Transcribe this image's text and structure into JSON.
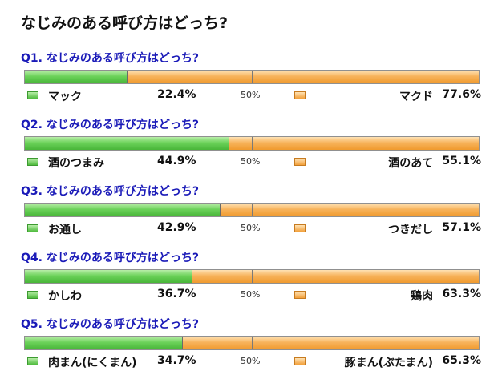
{
  "title": "なじみのある呼び方はどっち?",
  "midpoint_label": "50%",
  "colors": {
    "left": "#5cc84a",
    "right": "#f5a640",
    "question": "#1a1ab8"
  },
  "chart_data": {
    "type": "bar",
    "orientation": "horizontal-stacked-100",
    "questions": [
      {
        "title": "Q1. なじみのある呼び方はどっち?",
        "left_label": "マック",
        "left_value": 22.4,
        "left_text": "22.4%",
        "right_label": "マクド",
        "right_value": 77.6,
        "right_text": "77.6%"
      },
      {
        "title": "Q2. なじみのある呼び方はどっち?",
        "left_label": "酒のつまみ",
        "left_value": 44.9,
        "left_text": "44.9%",
        "right_label": "酒のあて",
        "right_value": 55.1,
        "right_text": "55.1%"
      },
      {
        "title": "Q3. なじみのある呼び方はどっち?",
        "left_label": "お通し",
        "left_value": 42.9,
        "left_text": "42.9%",
        "right_label": "つきだし",
        "right_value": 57.1,
        "right_text": "57.1%"
      },
      {
        "title": "Q4. なじみのある呼び方はどっち?",
        "left_label": "かしわ",
        "left_value": 36.7,
        "left_text": "36.7%",
        "right_label": "鶏肉",
        "right_value": 63.3,
        "right_text": "63.3%"
      },
      {
        "title": "Q5. なじみのある呼び方はどっち?",
        "left_label": "肉まん(にくまん)",
        "left_value": 34.7,
        "left_text": "34.7%",
        "right_label": "豚まん(ぶたまん)",
        "right_value": 65.3,
        "right_text": "65.3%"
      }
    ]
  }
}
